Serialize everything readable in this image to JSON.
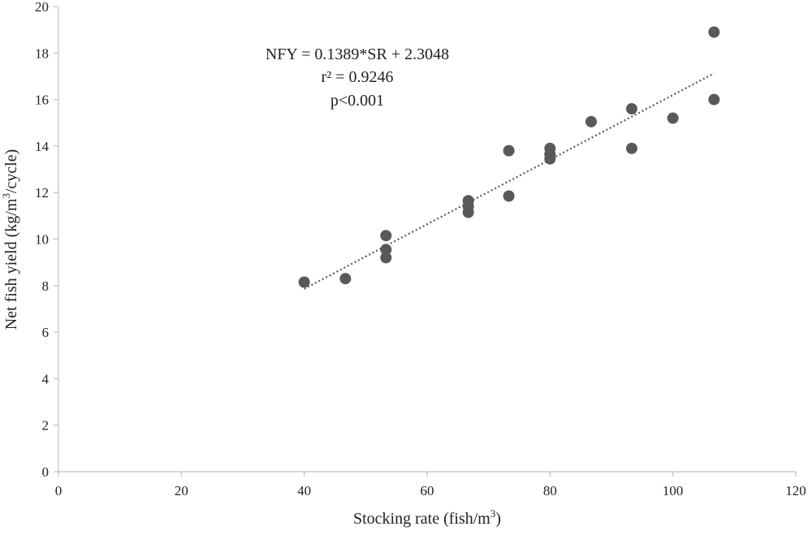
{
  "chart_data": {
    "type": "scatter",
    "xlabel": "Stocking rate (fish/m",
    "xlabel_sup": "3",
    "xlabel_end": ")",
    "ylabel": "Net  fish yield (kg/m",
    "ylabel_sup": "3",
    "ylabel_end": "/cycle)",
    "xlim": [
      0,
      120
    ],
    "ylim": [
      0,
      20
    ],
    "xticks": [
      0,
      20,
      40,
      60,
      80,
      100,
      120
    ],
    "yticks": [
      0,
      2,
      4,
      6,
      8,
      10,
      12,
      14,
      16,
      18,
      20
    ],
    "grid": false,
    "legend": "none",
    "point_color": "#595959",
    "trendline": {
      "style": "dotted",
      "slope": 0.1389,
      "intercept": 2.3048,
      "x_range": [
        40,
        106.7
      ]
    },
    "annotations": [
      "NFY = 0.1389*SR + 2.3048",
      "r² = 0.9246",
      "p<0.001"
    ],
    "points": [
      {
        "x": 40,
        "y": 8.15
      },
      {
        "x": 46.7,
        "y": 8.3
      },
      {
        "x": 53.3,
        "y": 10.15
      },
      {
        "x": 53.3,
        "y": 9.55
      },
      {
        "x": 53.3,
        "y": 9.2
      },
      {
        "x": 66.7,
        "y": 11.65
      },
      {
        "x": 66.7,
        "y": 11.4
      },
      {
        "x": 66.7,
        "y": 11.15
      },
      {
        "x": 73.3,
        "y": 13.8
      },
      {
        "x": 73.3,
        "y": 11.85
      },
      {
        "x": 80,
        "y": 13.9
      },
      {
        "x": 80,
        "y": 13.65
      },
      {
        "x": 80,
        "y": 13.45
      },
      {
        "x": 86.7,
        "y": 15.05
      },
      {
        "x": 93.3,
        "y": 15.6
      },
      {
        "x": 93.3,
        "y": 13.9
      },
      {
        "x": 100,
        "y": 15.2
      },
      {
        "x": 106.7,
        "y": 18.9
      },
      {
        "x": 106.7,
        "y": 16.0
      }
    ]
  }
}
